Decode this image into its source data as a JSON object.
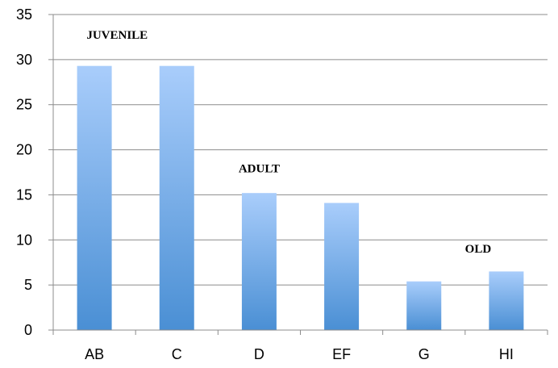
{
  "chart_data": {
    "type": "bar",
    "title": "",
    "xlabel": "",
    "ylabel": "",
    "categories": [
      "AB",
      "C",
      "D",
      "EF",
      "G",
      "HI"
    ],
    "values": [
      29.3,
      29.3,
      15.2,
      14.1,
      5.4,
      6.5
    ],
    "ylim": [
      0,
      35
    ],
    "yticks": [
      "0",
      "5",
      "10",
      "15",
      "20",
      "25",
      "30",
      "35"
    ],
    "grid": true,
    "legend": "none",
    "annotations": [
      {
        "text": "JUVENILE",
        "category": "C"
      },
      {
        "text": "ADULT",
        "category": "D"
      },
      {
        "text": "OLD",
        "category": "HI"
      }
    ],
    "colors": {
      "bar_top": "#a9cdfb",
      "bar_bottom": "#4a8fd4",
      "grid": "#8c8c8c",
      "axis": "#8c8c8c"
    }
  }
}
